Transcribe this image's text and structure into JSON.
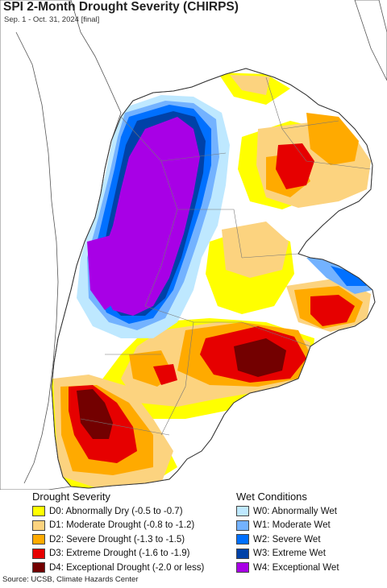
{
  "title": "SPI 2-Month Drought Severity (CHIRPS)",
  "subtitle": "Sep. 1 - Oct. 31, 2024 [final]",
  "legend_drought": {
    "heading": "Drought Severity",
    "items": [
      {
        "label": "D0: Abnormally Dry (-0.5 to -0.7)",
        "color": "#FFFF00"
      },
      {
        "label": "D1: Moderate Drought (-0.8 to -1.2)",
        "color": "#FCD37F"
      },
      {
        "label": "D2: Severe Drought (-1.3 to -1.5)",
        "color": "#FFAA00"
      },
      {
        "label": "D3: Extreme Drought (-1.6 to -1.9)",
        "color": "#E60000"
      },
      {
        "label": "D4: Exceptional Drought (-2.0 or less)",
        "color": "#730000"
      }
    ]
  },
  "legend_wet": {
    "heading": "Wet Conditions",
    "items": [
      {
        "label": "W0: Abnormally Wet",
        "color": "#BEE8FF"
      },
      {
        "label": "W1: Moderate Wet",
        "color": "#73B2FF"
      },
      {
        "label": "W2: Severe Wet",
        "color": "#0070FF"
      },
      {
        "label": "W3: Extreme Wet",
        "color": "#0042A8"
      },
      {
        "label": "W4: Exceptional Wet",
        "color": "#A800E6"
      }
    ]
  },
  "source": "Source: UCSB, Climate Hazards Center"
}
